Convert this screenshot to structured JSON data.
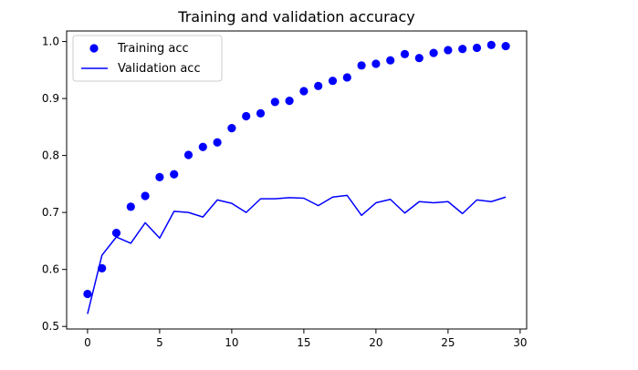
{
  "chart_data": {
    "type": "line",
    "title": "Training and validation accuracy",
    "xlabel": "",
    "ylabel": "",
    "xlim": [
      -1.45,
      30.45
    ],
    "ylim": [
      0.4955,
      1.0185
    ],
    "xticks": [
      0,
      5,
      10,
      15,
      20,
      25,
      30
    ],
    "yticks": [
      0.5,
      0.6,
      0.7,
      0.8,
      0.9,
      1.0
    ],
    "ytick_labels": [
      "0.5",
      "0.6",
      "0.7",
      "0.8",
      "0.9",
      "1.0"
    ],
    "grid": false,
    "legend_position": "top-left",
    "x": [
      0,
      1,
      2,
      3,
      4,
      5,
      6,
      7,
      8,
      9,
      10,
      11,
      12,
      13,
      14,
      15,
      16,
      17,
      18,
      19,
      20,
      21,
      22,
      23,
      24,
      25,
      26,
      27,
      28,
      29
    ],
    "series": [
      {
        "name": "Training acc",
        "style": "markers",
        "color": "#0000ff",
        "values": [
          0.557,
          0.602,
          0.664,
          0.71,
          0.729,
          0.762,
          0.767,
          0.801,
          0.815,
          0.823,
          0.848,
          0.869,
          0.874,
          0.894,
          0.896,
          0.913,
          0.922,
          0.931,
          0.937,
          0.958,
          0.961,
          0.967,
          0.978,
          0.971,
          0.98,
          0.985,
          0.987,
          0.989,
          0.994,
          0.992
        ]
      },
      {
        "name": "Validation acc",
        "style": "line",
        "color": "#0000ff",
        "values": [
          0.522,
          0.625,
          0.657,
          0.646,
          0.682,
          0.655,
          0.702,
          0.7,
          0.692,
          0.722,
          0.716,
          0.7,
          0.724,
          0.724,
          0.726,
          0.725,
          0.712,
          0.727,
          0.73,
          0.695,
          0.717,
          0.723,
          0.699,
          0.719,
          0.717,
          0.719,
          0.698,
          0.722,
          0.719,
          0.727
        ]
      }
    ]
  }
}
